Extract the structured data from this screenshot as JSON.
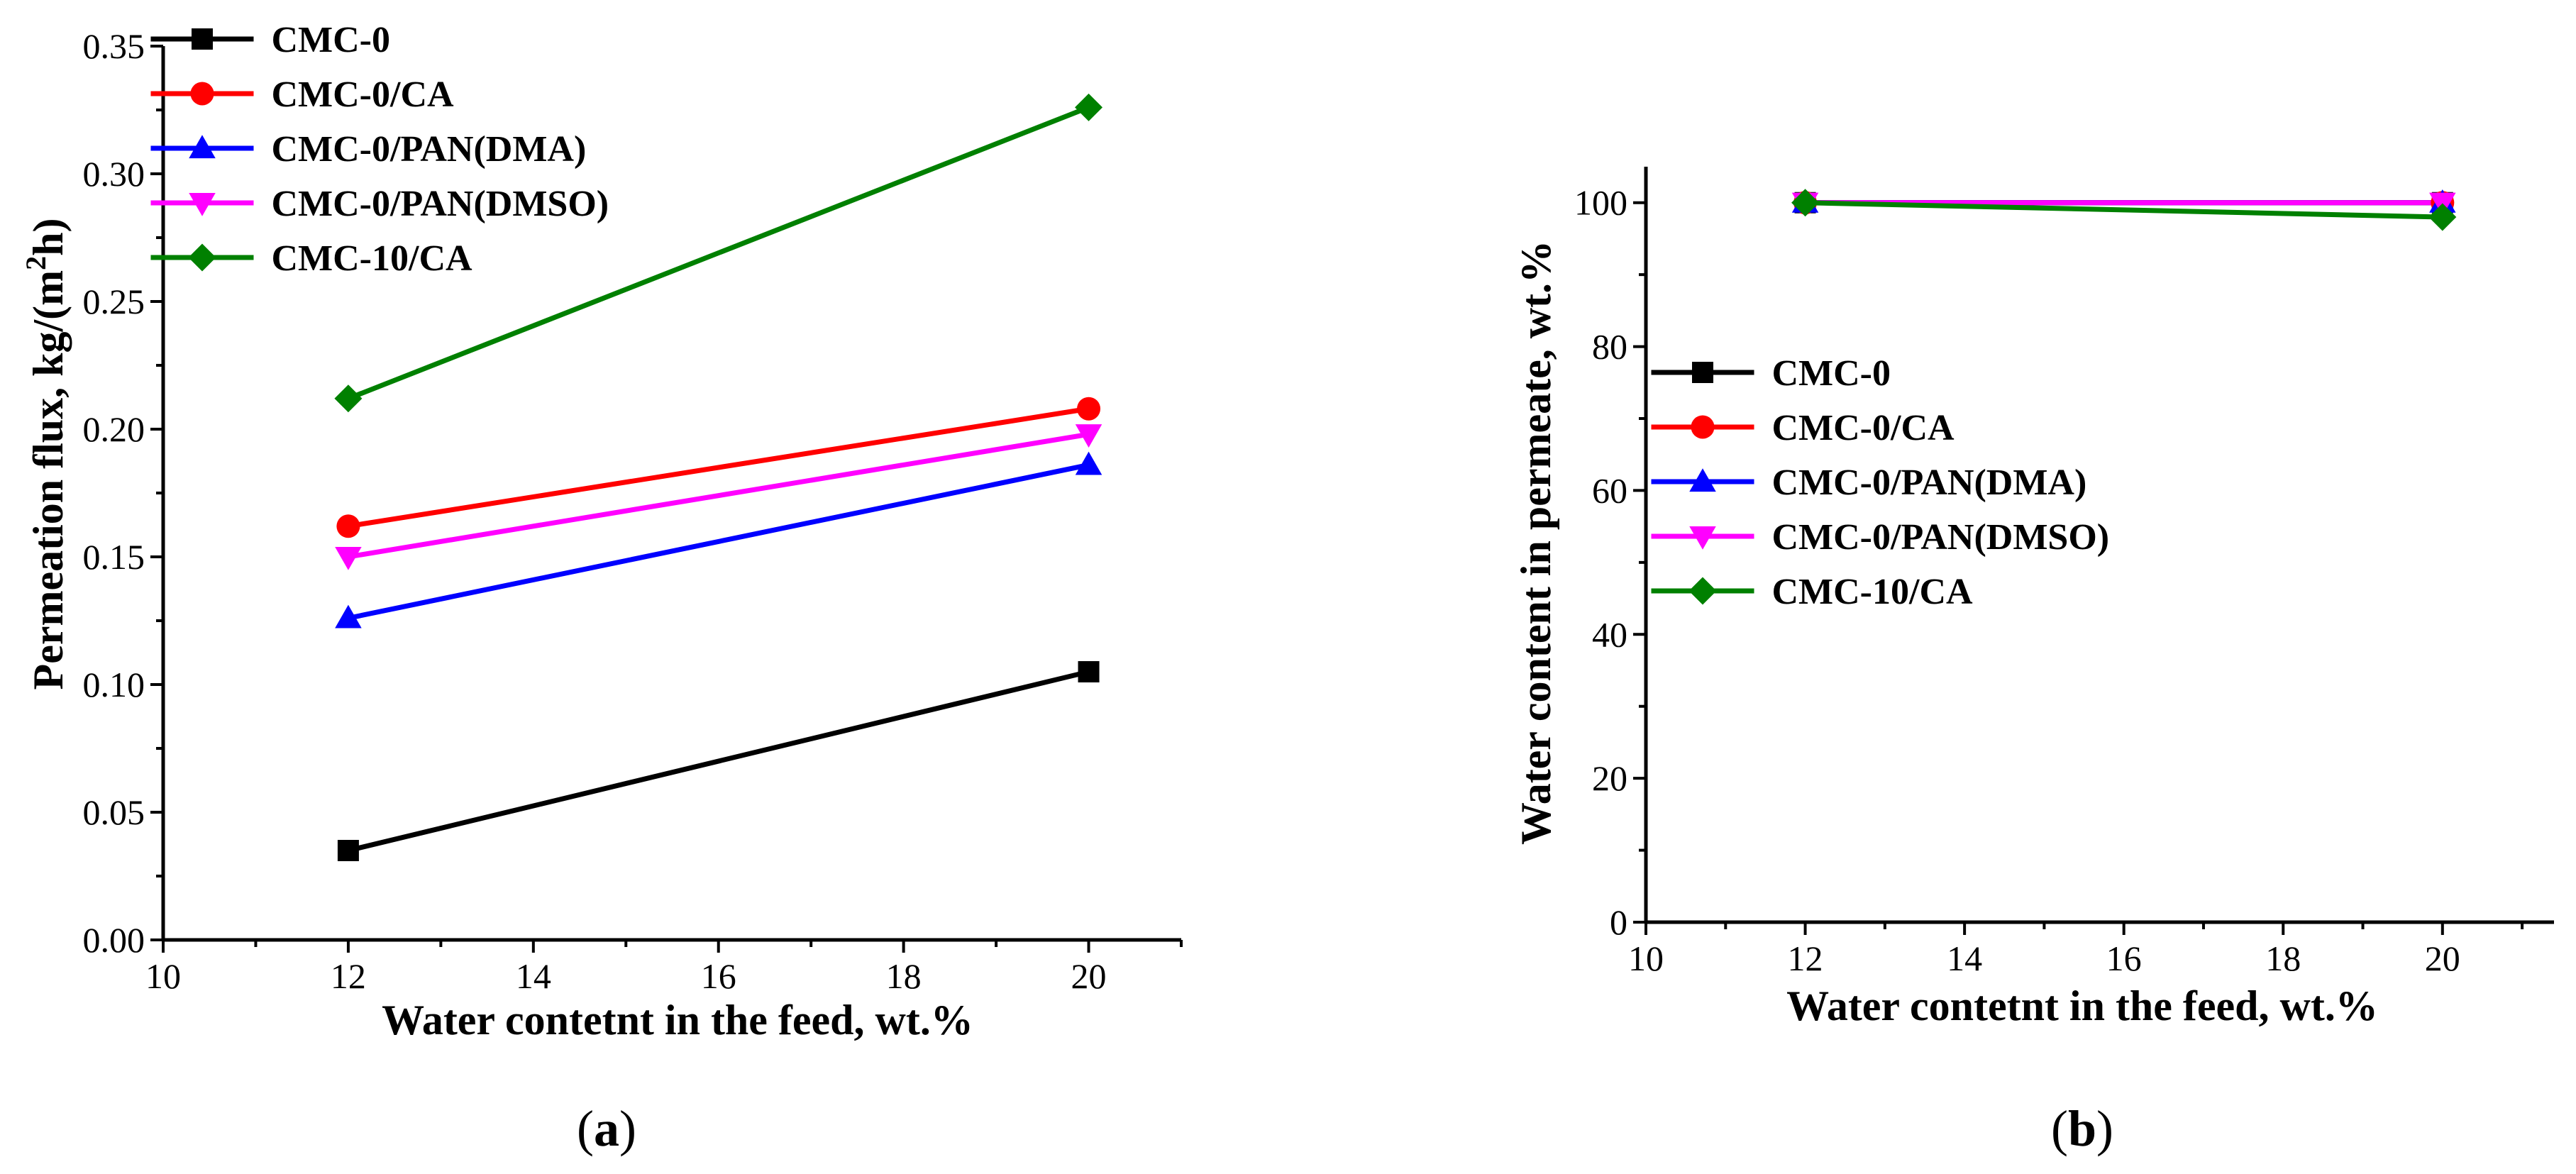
{
  "figure": {
    "panels": [
      {
        "caption_prefix": "(",
        "caption_letter": "a",
        "caption_suffix": ")"
      },
      {
        "caption_prefix": "(",
        "caption_letter": "b",
        "caption_suffix": ")"
      }
    ]
  },
  "chart_data": [
    {
      "type": "line",
      "panel": "a",
      "title": "",
      "xlabel": "Water contetnt in the feed, wt.%",
      "ylabel_main": "Permeation flux, kg/(m",
      "ylabel_sup": "2",
      "ylabel_end": "h)",
      "xlim": [
        10,
        21
      ],
      "ylim": [
        0,
        0.35
      ],
      "xticks": [
        10,
        12,
        14,
        16,
        18,
        20
      ],
      "xtick_labels": [
        "10",
        "12",
        "14",
        "16",
        "18",
        "20"
      ],
      "yticks": [
        0,
        0.05,
        0.1,
        0.15,
        0.2,
        0.25,
        0.3,
        0.35
      ],
      "ytick_labels": [
        "0.00",
        "0.05",
        "0.10",
        "0.15",
        "0.20",
        "0.25",
        "0.30",
        "0.35"
      ],
      "legend_position": "top-left",
      "x": [
        12,
        20
      ],
      "series": [
        {
          "name": "CMC-0",
          "values": [
            0.035,
            0.105
          ],
          "color": "#000000",
          "marker": "square"
        },
        {
          "name": "CMC-0/CA",
          "values": [
            0.162,
            0.208
          ],
          "color": "#ff0000",
          "marker": "circle"
        },
        {
          "name": "CMC-0/PAN(DMA)",
          "values": [
            0.126,
            0.186
          ],
          "color": "#0000ff",
          "marker": "triangle-up"
        },
        {
          "name": "CMC-0/PAN(DMSO)",
          "values": [
            0.15,
            0.198
          ],
          "color": "#ff00ff",
          "marker": "triangle-down"
        },
        {
          "name": "CMC-10/CA",
          "values": [
            0.212,
            0.326
          ],
          "color": "#008000",
          "marker": "diamond"
        }
      ]
    },
    {
      "type": "line",
      "panel": "b",
      "title": "",
      "xlabel": "Water contetnt in the feed, wt.%",
      "ylabel_main": "Water content in permeate, wt.%",
      "ylabel_sup": "",
      "ylabel_end": "",
      "xlim": [
        10,
        21.4
      ],
      "ylim": [
        0,
        105
      ],
      "xticks": [
        10,
        12,
        14,
        16,
        18,
        20
      ],
      "xtick_labels": [
        "10",
        "12",
        "14",
        "16",
        "18",
        "20"
      ],
      "yticks": [
        0,
        20,
        40,
        60,
        80,
        100
      ],
      "ytick_labels": [
        "0",
        "20",
        "40",
        "60",
        "80",
        "100"
      ],
      "legend_position": "middle-left",
      "x": [
        12,
        20
      ],
      "series": [
        {
          "name": "CMC-0",
          "values": [
            100,
            100
          ],
          "color": "#000000",
          "marker": "square"
        },
        {
          "name": "CMC-0/CA",
          "values": [
            100,
            100
          ],
          "color": "#ff0000",
          "marker": "circle"
        },
        {
          "name": "CMC-0/PAN(DMA)",
          "values": [
            100,
            100
          ],
          "color": "#0000ff",
          "marker": "triangle-up"
        },
        {
          "name": "CMC-0/PAN(DMSO)",
          "values": [
            100,
            100
          ],
          "color": "#ff00ff",
          "marker": "triangle-down"
        },
        {
          "name": "CMC-10/CA",
          "values": [
            100,
            98
          ],
          "color": "#008000",
          "marker": "diamond"
        }
      ]
    }
  ]
}
